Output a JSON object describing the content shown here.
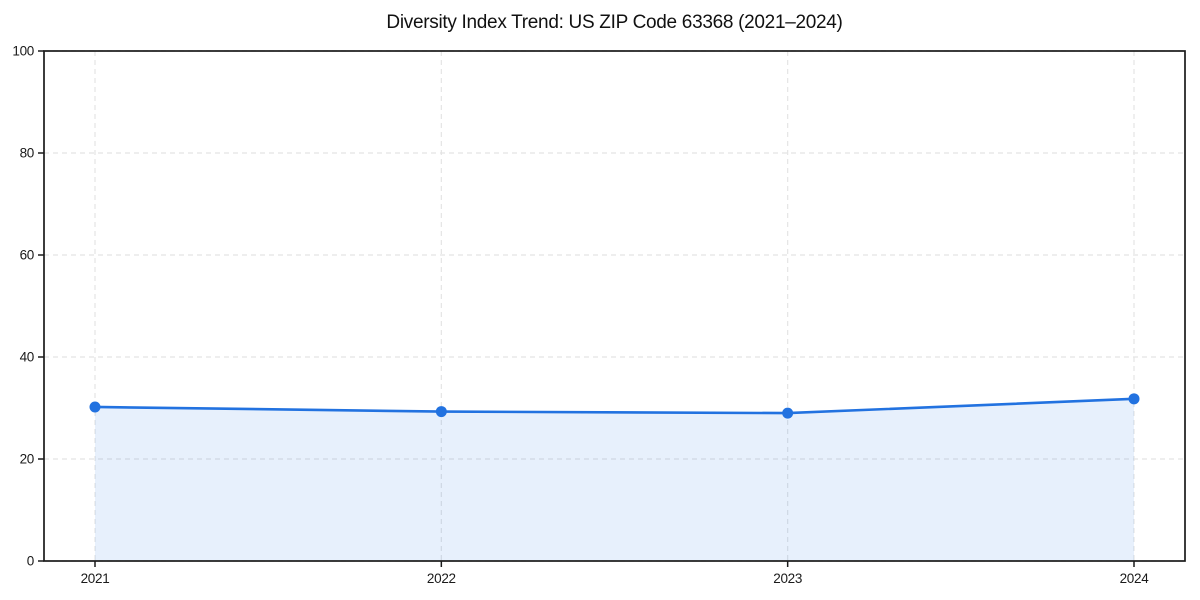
{
  "chart_data": {
    "type": "area",
    "title": "Diversity Index Trend: US ZIP Code 63368 (2021–2024)",
    "x": [
      2021,
      2022,
      2023,
      2024
    ],
    "series": [
      {
        "name": "Diversity Index",
        "values": [
          30.2,
          29.3,
          29.0,
          31.8
        ]
      }
    ],
    "xlabel": "",
    "ylabel": "",
    "ylim": [
      0,
      100
    ],
    "yticks": [
      0,
      20,
      40,
      60,
      80,
      100
    ],
    "grid": true,
    "grid_style": "dashed",
    "legend_position": "none",
    "marker": "circle",
    "colors": {
      "line": "#2272e0",
      "marker": "#2272e0",
      "fill": "#2272e0",
      "fill_opacity": 0.11,
      "grid": "#e4e4e4",
      "axis": "#1a1a1a",
      "background": "#ffffff"
    }
  }
}
